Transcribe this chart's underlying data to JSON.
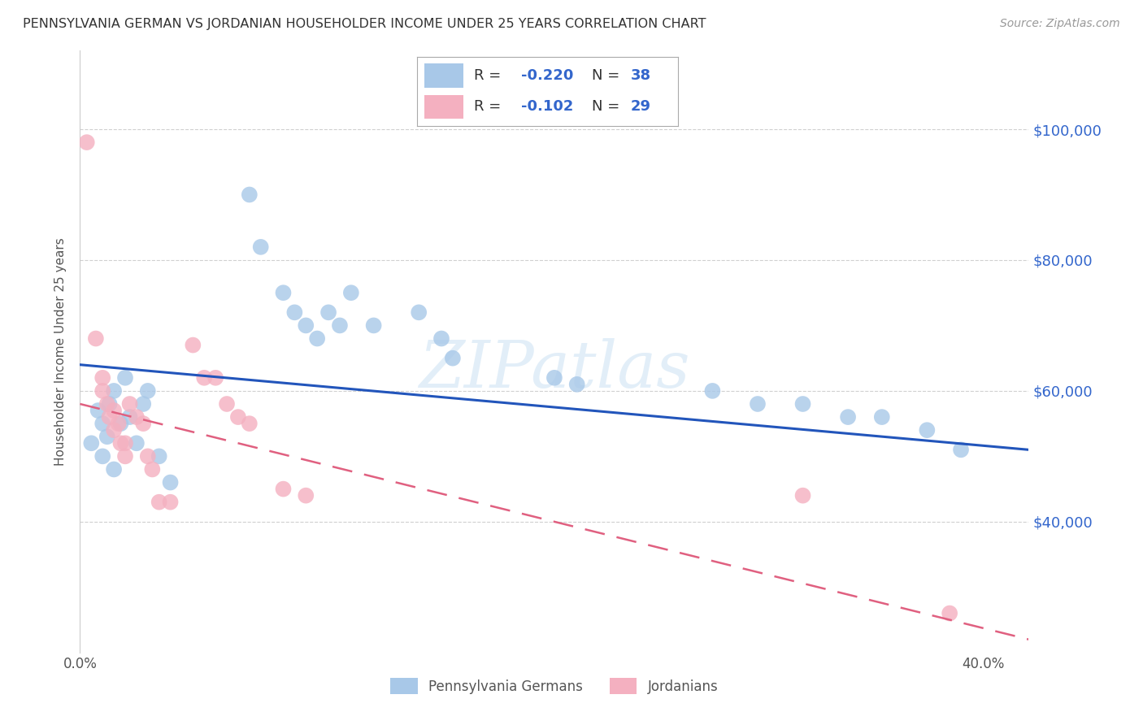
{
  "title": "PENNSYLVANIA GERMAN VS JORDANIAN HOUSEHOLDER INCOME UNDER 25 YEARS CORRELATION CHART",
  "source": "Source: ZipAtlas.com",
  "ylabel": "Householder Income Under 25 years",
  "xlim": [
    0.0,
    0.42
  ],
  "ylim": [
    20000,
    112000
  ],
  "yticks": [
    40000,
    60000,
    80000,
    100000
  ],
  "ytick_labels": [
    "$40,000",
    "$60,000",
    "$80,000",
    "$100,000"
  ],
  "xticks": [
    0.0,
    0.05,
    0.1,
    0.15,
    0.2,
    0.25,
    0.3,
    0.35,
    0.4
  ],
  "blue_R": -0.22,
  "blue_N": 38,
  "pink_R": -0.102,
  "pink_N": 29,
  "blue_color": "#a8c8e8",
  "pink_color": "#f4b0c0",
  "blue_line_color": "#2255bb",
  "pink_line_color": "#e06080",
  "watermark": "ZIPatlas",
  "background_color": "#ffffff",
  "grid_color": "#d0d0d0",
  "legend_text_color": "#3366cc",
  "blue_scatter_x": [
    0.005,
    0.008,
    0.01,
    0.01,
    0.012,
    0.013,
    0.015,
    0.015,
    0.018,
    0.02,
    0.022,
    0.025,
    0.028,
    0.03,
    0.035,
    0.04,
    0.075,
    0.08,
    0.09,
    0.095,
    0.1,
    0.105,
    0.11,
    0.115,
    0.12,
    0.13,
    0.15,
    0.16,
    0.165,
    0.21,
    0.22,
    0.28,
    0.3,
    0.32,
    0.34,
    0.355,
    0.375,
    0.39
  ],
  "blue_scatter_y": [
    52000,
    57000,
    55000,
    50000,
    53000,
    58000,
    60000,
    48000,
    55000,
    62000,
    56000,
    52000,
    58000,
    60000,
    50000,
    46000,
    90000,
    82000,
    75000,
    72000,
    70000,
    68000,
    72000,
    70000,
    75000,
    70000,
    72000,
    68000,
    65000,
    62000,
    61000,
    60000,
    58000,
    58000,
    56000,
    56000,
    54000,
    51000
  ],
  "pink_scatter_x": [
    0.003,
    0.007,
    0.01,
    0.01,
    0.012,
    0.013,
    0.015,
    0.015,
    0.017,
    0.018,
    0.02,
    0.02,
    0.022,
    0.025,
    0.028,
    0.03,
    0.032,
    0.035,
    0.04,
    0.05,
    0.055,
    0.06,
    0.065,
    0.07,
    0.075,
    0.09,
    0.1,
    0.32,
    0.385
  ],
  "pink_scatter_y": [
    98000,
    68000,
    62000,
    60000,
    58000,
    56000,
    57000,
    54000,
    55000,
    52000,
    52000,
    50000,
    58000,
    56000,
    55000,
    50000,
    48000,
    43000,
    43000,
    67000,
    62000,
    62000,
    58000,
    56000,
    55000,
    45000,
    44000,
    44000,
    26000
  ]
}
